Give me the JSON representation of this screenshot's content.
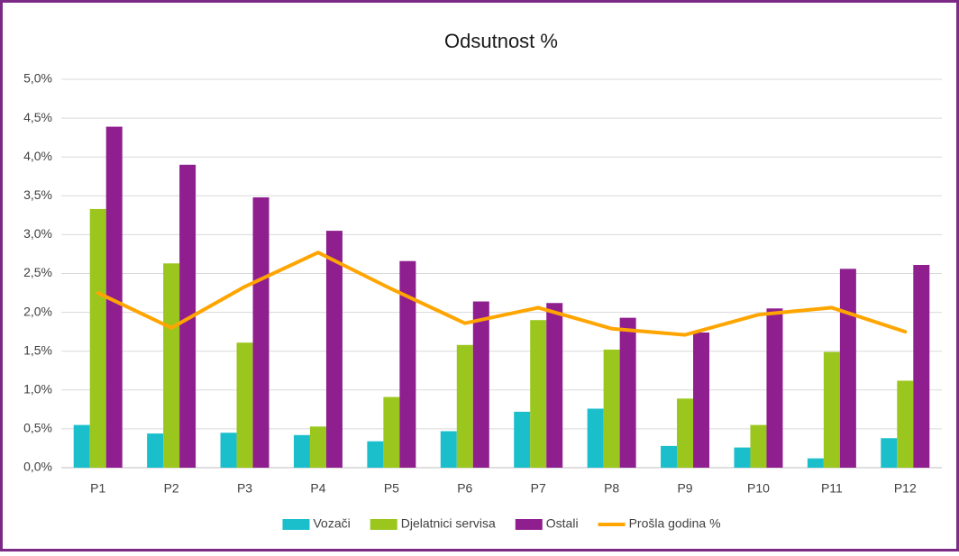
{
  "chart_data": {
    "type": "bar",
    "title": "Odsutnost %",
    "categories": [
      "P1",
      "P2",
      "P3",
      "P4",
      "P5",
      "P6",
      "P7",
      "P8",
      "P9",
      "P10",
      "P11",
      "P12"
    ],
    "series": [
      {
        "name": "Vozači",
        "color": "#1bbfcc",
        "values": [
          0.55,
          0.44,
          0.45,
          0.42,
          0.34,
          0.47,
          0.72,
          0.76,
          0.28,
          0.26,
          0.12,
          0.38
        ]
      },
      {
        "name": "Djelatnici servisa",
        "color": "#9bc61d",
        "values": [
          3.33,
          2.63,
          1.61,
          0.53,
          0.91,
          1.58,
          1.9,
          1.52,
          0.89,
          0.55,
          1.49,
          1.12
        ]
      },
      {
        "name": "Ostali",
        "color": "#8f1f8f",
        "values": [
          4.39,
          3.9,
          3.48,
          3.05,
          2.66,
          2.14,
          2.12,
          1.93,
          1.74,
          2.05,
          2.56,
          2.61
        ]
      },
      {
        "name": "Prošla godina %",
        "color": "#ffa500",
        "type": "line",
        "values": [
          2.25,
          1.8,
          2.33,
          2.77,
          2.3,
          1.86,
          2.06,
          1.79,
          1.71,
          1.97,
          2.06,
          1.75
        ]
      }
    ],
    "ylim": [
      0,
      5
    ],
    "yticks": [
      {
        "value": 0,
        "label": "0,0%"
      },
      {
        "value": 0.5,
        "label": "0,5%"
      },
      {
        "value": 1,
        "label": "1,0%"
      },
      {
        "value": 1.5,
        "label": "1,5%"
      },
      {
        "value": 2,
        "label": "2,0%"
      },
      {
        "value": 2.5,
        "label": "2,5%"
      },
      {
        "value": 3,
        "label": "3,0%"
      },
      {
        "value": 3.5,
        "label": "3,5%"
      },
      {
        "value": 4,
        "label": "4,0%"
      },
      {
        "value": 4.5,
        "label": "4,5%"
      },
      {
        "value": 5,
        "label": "5,0%"
      }
    ],
    "grid": true,
    "legend": "bottom"
  }
}
